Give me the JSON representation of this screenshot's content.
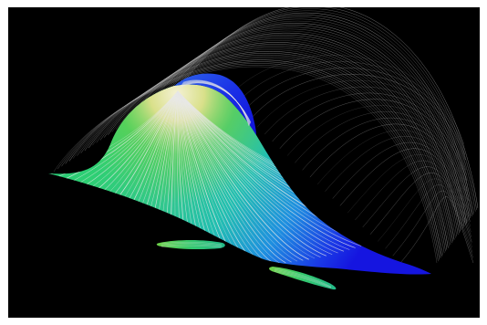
{
  "scene": {
    "subject": "flow-visualization-surface",
    "background_color": "#000000",
    "frame_color": "#ffffff",
    "colormap": [
      "#1a1ae6",
      "#1e6fe8",
      "#16c2c8",
      "#1ec47a",
      "#6fd24a",
      "#d9e08a",
      "#f4f1d4"
    ],
    "streamline_color": "#e8e8e8",
    "wake_line_color": "#bdbdbd"
  }
}
